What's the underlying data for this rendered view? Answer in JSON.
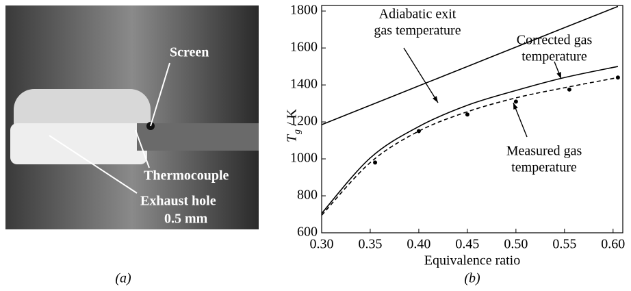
{
  "panel_a": {
    "labels": [
      "Screen",
      "Thermocouple",
      "Exhaust hole",
      "0.5 mm"
    ],
    "caption": "(a)"
  },
  "chart_data": {
    "type": "line",
    "caption": "(b)",
    "x_label": "Equivalence ratio",
    "y_label": "T",
    "y_label_sub": "g",
    "y_label_unit": "/ K",
    "xlim": [
      0.3,
      0.61
    ],
    "ylim": [
      600,
      1830
    ],
    "xticks": [
      {
        "value": 0.3,
        "label": "0.30"
      },
      0.35,
      {
        "value": 0.4,
        "label": "0.40"
      },
      0.45,
      {
        "value": 0.5,
        "label": "0.50"
      },
      0.55,
      {
        "value": 0.6,
        "label": "0.60"
      }
    ],
    "yticks": [
      600,
      800,
      1000,
      1200,
      1400,
      1600,
      1800
    ],
    "series": [
      {
        "style": "solid",
        "color": "#000000",
        "x": [
          0.3,
          0.35,
          0.4,
          0.45,
          0.5,
          0.55,
          0.605
        ],
        "values": [
          1185,
          1290,
          1395,
          1500,
          1605,
          1710,
          1825
        ]
      },
      {
        "style": "solid",
        "color": "#000000",
        "x": [
          0.3,
          0.35,
          0.4,
          0.45,
          0.5,
          0.55,
          0.605
        ],
        "values": [
          705,
          1005,
          1175,
          1290,
          1370,
          1440,
          1500
        ]
      },
      {
        "style": "dashed",
        "color": "#000000",
        "x": [
          0.3,
          0.35,
          0.4,
          0.45,
          0.5,
          0.55,
          0.605
        ],
        "values": [
          695,
          980,
          1150,
          1255,
          1330,
          1385,
          1440
        ]
      },
      {
        "style": "points",
        "color": "#000000",
        "x": [
          0.355,
          0.4,
          0.45,
          0.5,
          0.555,
          0.605
        ],
        "values": [
          980,
          1150,
          1240,
          1310,
          1375,
          1440
        ]
      }
    ],
    "annotations": [
      {
        "lines": [
          "Adiabatic exit",
          "gas temperature"
        ]
      },
      {
        "lines": [
          "Corrected gas",
          "temperature"
        ]
      },
      {
        "lines": [
          "Measured gas",
          "temperature"
        ]
      }
    ]
  }
}
